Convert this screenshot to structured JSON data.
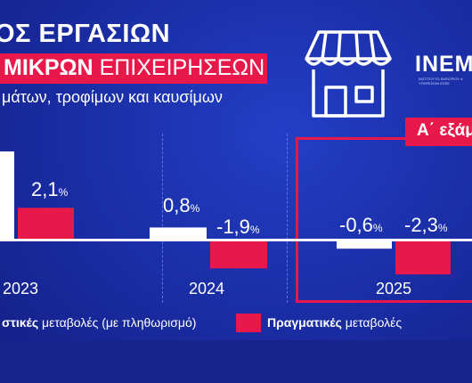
{
  "header": {
    "title_line1": "ΟΣ ΕΡΓΑΣΙΩΝ",
    "title_line2_bold": "ΜΙΚΡΩΝ",
    "title_line2_rest": "ΕΠΙΧΕΙΡΗΣΕΩΝ",
    "subtitle": "μάτων, τροφίμων και καυσίμων",
    "period": "Α΄ εξάμ.",
    "brand": "ΙΝΕΜΥ",
    "brand_sub": "ΙΝΣΤΙΤΟΥΤΟ ΕΜΠΟΡΙΟΥ & ΥΠΗΡΕΣΙΩΝ ΕΣΕΕ"
  },
  "legend": {
    "nominal_bold": "στικές",
    "nominal_rest": "μεταβολές (με πληθωρισμό)",
    "real_bold": "Πραγματικές",
    "real_rest": "μεταβολές"
  },
  "colors": {
    "nominal": "#ffffff",
    "real": "#e8194a",
    "background": "#1b2fa8"
  },
  "icon": "storefront-icon",
  "chart_data": {
    "type": "bar",
    "categories": [
      "2023",
      "2024",
      "2025"
    ],
    "series": [
      {
        "name": "Ονομαστικές μεταβολές (με πληθωρισμό)",
        "values": [
          null,
          0.8,
          -0.6
        ],
        "labels": [
          "",
          "0,8",
          "-0,6"
        ],
        "color": "#ffffff"
      },
      {
        "name": "Πραγματικές μεταβολές",
        "values": [
          2.1,
          -1.9,
          -2.3
        ],
        "labels": [
          "2,1",
          "-1,9",
          "-2,3"
        ],
        "color": "#e8194a"
      }
    ],
    "unit": "%",
    "highlighted_category": "2025"
  }
}
